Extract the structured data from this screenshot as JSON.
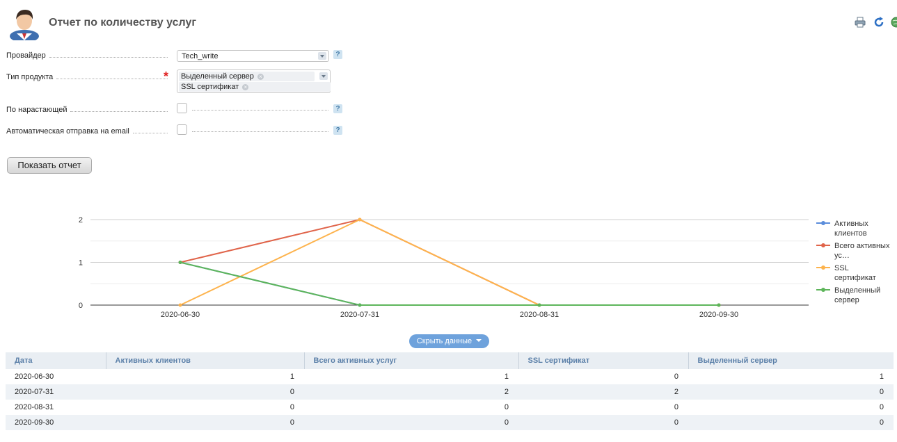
{
  "header": {
    "title": "Отчет по количеству услуг",
    "avatar_icon": "user-avatar-icon",
    "toolbar_icons": [
      "printer-icon",
      "refresh-icon",
      "globe-icon"
    ]
  },
  "form": {
    "provider": {
      "label": "Провайдер",
      "value": "Tech_write"
    },
    "product_type": {
      "label": "Тип продукта",
      "required_mark": "*",
      "selected": [
        "Выделенный сервер",
        "SSL сертификат"
      ]
    },
    "cumulative": {
      "label": "По нарастающей",
      "checked": false
    },
    "auto_email": {
      "label": "Автоматическая отправка на email",
      "checked": false
    },
    "help_mark": "?",
    "submit_label": "Показать отчет"
  },
  "chart_data": {
    "type": "line",
    "categories": [
      "2020-06-30",
      "2020-07-31",
      "2020-08-31",
      "2020-09-30"
    ],
    "ylim": [
      0,
      2
    ],
    "yticks": [
      0,
      1,
      2
    ],
    "grid": true,
    "legend": "right",
    "series": [
      {
        "name": "Активных клиентов",
        "color": "#5b8ddb",
        "values": [
          1,
          0,
          0,
          0
        ]
      },
      {
        "name": "Всего активных ус…",
        "color": "#e0644a",
        "values": [
          1,
          2,
          0,
          0
        ]
      },
      {
        "name": "SSL сертификат",
        "color": "#fdb34d",
        "values": [
          0,
          2,
          0,
          0
        ]
      },
      {
        "name": "Выделенный сервер",
        "color": "#5db55a",
        "values": [
          1,
          0,
          0,
          0
        ]
      }
    ]
  },
  "toggle_label": "Скрыть данные",
  "table": {
    "columns": [
      "Дата",
      "Активных клиентов",
      "Всего активных услуг",
      "SSL сертификат",
      "Выделенный сервер"
    ],
    "rows": [
      [
        "2020-06-30",
        "1",
        "1",
        "0",
        "1"
      ],
      [
        "2020-07-31",
        "0",
        "2",
        "2",
        "0"
      ],
      [
        "2020-08-31",
        "0",
        "0",
        "0",
        "0"
      ],
      [
        "2020-09-30",
        "0",
        "0",
        "0",
        "0"
      ]
    ]
  }
}
